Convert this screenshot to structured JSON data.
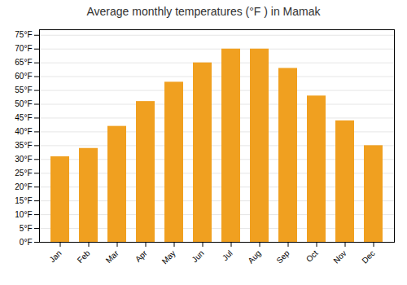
{
  "chart_data": {
    "type": "bar",
    "title": "Average monthly temperatures (°F ) in Mamak",
    "categories": [
      "Jan",
      "Feb",
      "Mar",
      "Apr",
      "May",
      "Jun",
      "Jul",
      "Aug",
      "Sep",
      "Oct",
      "Nov",
      "Dec"
    ],
    "values": [
      31,
      34,
      42,
      51,
      58,
      65,
      70,
      70,
      63,
      53,
      44,
      35
    ],
    "color": "#F0A020",
    "ylim": [
      0,
      77
    ],
    "yticks": [
      {
        "value": 0,
        "label": "0°F"
      },
      {
        "value": 5,
        "label": "5°F"
      },
      {
        "value": 10,
        "label": "10°F"
      },
      {
        "value": 15,
        "label": "15°F"
      },
      {
        "value": 20,
        "label": "20°F"
      },
      {
        "value": 25,
        "label": "25°F"
      },
      {
        "value": 30,
        "label": "30°F"
      },
      {
        "value": 35,
        "label": "35°F"
      },
      {
        "value": 40,
        "label": "40°F"
      },
      {
        "value": 45,
        "label": "45°F"
      },
      {
        "value": 50,
        "label": "50°F"
      },
      {
        "value": 55,
        "label": "55°F"
      },
      {
        "value": 60,
        "label": "60°F"
      },
      {
        "value": 65,
        "label": "65°F"
      },
      {
        "value": 70,
        "label": "70°F"
      },
      {
        "value": 75,
        "label": "75°F"
      }
    ],
    "grid": true
  }
}
